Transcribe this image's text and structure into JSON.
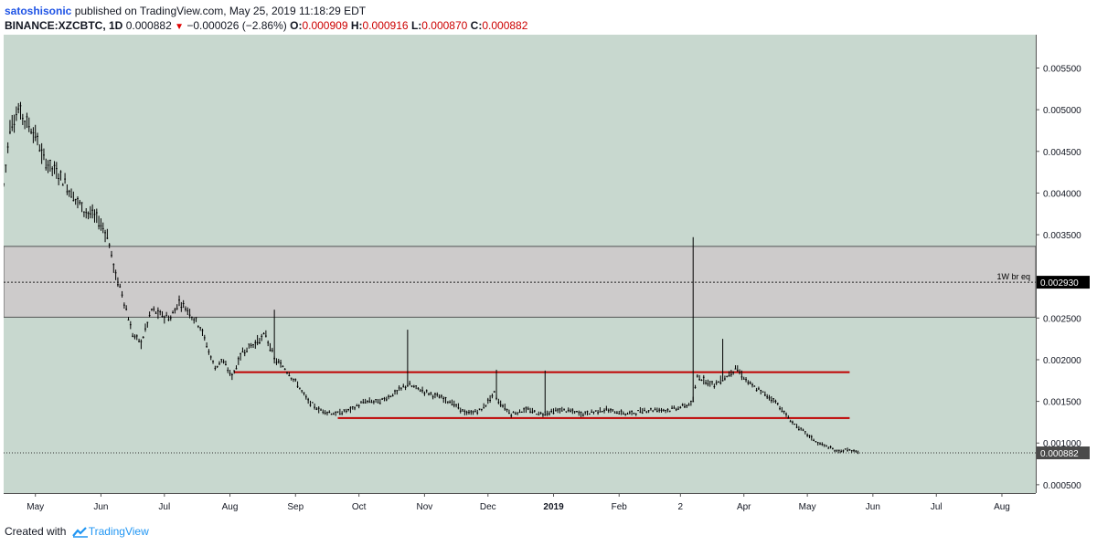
{
  "header": {
    "author": "satoshisonic",
    "published_text": "published on TradingView.com, May 25, 2019 11:18:29 EDT",
    "symbol": "BINANCE:XZCBTC, 1D",
    "last_price": "0.000882",
    "change": "−0.000026 (−2.86%)",
    "o_label": "O:",
    "o_value": "0.000909",
    "h_label": "H:",
    "h_value": "0.000916",
    "l_label": "L:",
    "l_value": "0.000870",
    "c_label": "C:",
    "c_value": "0.000882"
  },
  "footer": {
    "created_with": "Created with",
    "brand": "TradingView"
  },
  "colors": {
    "plot_bg": "#c8d8cf",
    "zone_fill": "#cdcbcb",
    "sr_line": "#c00000",
    "price": "#000000",
    "last_price_tag": "#4a4a4a",
    "level_tag": "#000000",
    "accent": "#2196f3"
  },
  "chart_data": {
    "type": "candlestick",
    "symbol": "BINANCE:XZCBTC",
    "interval": "1D",
    "x_ticks": [
      "May",
      "Jun",
      "Jul",
      "Aug",
      "Sep",
      "Oct",
      "Nov",
      "Dec",
      "2019",
      "Feb",
      "2",
      "Apr",
      "May",
      "Jun",
      "Jul",
      "Aug"
    ],
    "x_ticks_dates": [
      "2018-05-01",
      "2018-06-01",
      "2018-07-01",
      "2018-08-01",
      "2018-09-01",
      "2018-10-01",
      "2018-11-01",
      "2018-12-01",
      "2019-01-01",
      "2019-02-01",
      "2019-03-02",
      "2019-04-01",
      "2019-05-01",
      "2019-06-01",
      "2019-07-01",
      "2019-08-01"
    ],
    "x_range": [
      "2018-04-16",
      "2019-08-17"
    ],
    "y_ticks": [
      "0.005500",
      "0.005000",
      "0.004500",
      "0.004000",
      "0.003500",
      "0.002930",
      "0.002500",
      "0.002000",
      "0.001500",
      "0.001000",
      "0.000882",
      "0.000500"
    ],
    "ylim": [
      0.0004,
      0.0059
    ],
    "grid": false,
    "series": [
      {
        "name": "XZCBTC",
        "x": [
          "2018-04-16",
          "2018-04-19",
          "2018-04-23",
          "2018-04-27",
          "2018-05-01",
          "2018-05-05",
          "2018-05-09",
          "2018-05-13",
          "2018-05-18",
          "2018-05-24",
          "2018-05-30",
          "2018-06-04",
          "2018-06-08",
          "2018-06-11",
          "2018-06-13",
          "2018-06-16",
          "2018-06-20",
          "2018-06-25",
          "2018-06-28",
          "2018-07-04",
          "2018-07-08",
          "2018-07-12",
          "2018-07-18",
          "2018-07-22",
          "2018-07-25",
          "2018-07-28",
          "2018-08-02",
          "2018-08-07",
          "2018-08-13",
          "2018-08-18",
          "2018-08-22",
          "2018-08-27",
          "2018-09-02",
          "2018-09-07",
          "2018-09-12",
          "2018-09-20",
          "2018-09-27",
          "2018-10-04",
          "2018-10-11",
          "2018-10-18",
          "2018-10-24",
          "2018-11-03",
          "2018-11-13",
          "2018-11-21",
          "2018-11-28",
          "2018-12-04",
          "2018-12-06",
          "2018-12-12",
          "2018-12-19",
          "2018-12-26",
          "2019-01-05",
          "2019-01-15",
          "2019-01-25",
          "2019-02-05",
          "2019-02-15",
          "2019-02-25",
          "2019-03-05",
          "2019-03-08",
          "2019-03-10",
          "2019-03-18",
          "2019-03-24",
          "2019-03-28",
          "2019-04-04",
          "2019-04-10",
          "2019-04-16",
          "2019-04-22",
          "2019-04-26",
          "2019-05-01",
          "2019-05-06",
          "2019-05-11",
          "2019-05-15",
          "2019-05-20",
          "2019-05-25"
        ],
        "close": [
          0.0041,
          0.0048,
          0.005,
          0.00485,
          0.0047,
          0.0044,
          0.0043,
          0.0042,
          0.004,
          0.0038,
          0.0037,
          0.0035,
          0.003,
          0.0028,
          0.0026,
          0.0023,
          0.0022,
          0.0026,
          0.00255,
          0.0025,
          0.0027,
          0.0026,
          0.0024,
          0.0021,
          0.0019,
          0.002,
          0.0018,
          0.0021,
          0.0022,
          0.0023,
          0.002,
          0.0019,
          0.0017,
          0.0015,
          0.0014,
          0.00135,
          0.0014,
          0.0015,
          0.0015,
          0.0016,
          0.0017,
          0.0016,
          0.0015,
          0.00135,
          0.0014,
          0.0016,
          0.0015,
          0.00135,
          0.0014,
          0.00135,
          0.0014,
          0.00135,
          0.0014,
          0.00135,
          0.0014,
          0.0014,
          0.00145,
          0.0015,
          0.0018,
          0.0017,
          0.0018,
          0.0019,
          0.0017,
          0.0016,
          0.0015,
          0.0013,
          0.0012,
          0.0011,
          0.001,
          0.00095,
          0.0009,
          0.00092,
          0.000882
        ]
      }
    ],
    "spikes": [
      {
        "date": "2018-08-22",
        "high": 0.0026
      },
      {
        "date": "2018-10-24",
        "high": 0.00236
      },
      {
        "date": "2018-12-05",
        "high": 0.00188
      },
      {
        "date": "2018-12-28",
        "high": 0.00187
      },
      {
        "date": "2019-03-08",
        "high": 0.00347
      },
      {
        "date": "2019-03-22",
        "high": 0.00225
      }
    ],
    "zone": {
      "top": 0.00336,
      "bottom": 0.00251
    },
    "levels": [
      {
        "name": "1W br eq",
        "price": 0.00293,
        "label": "0.002930"
      }
    ],
    "support_resistance": [
      {
        "price": 0.00185,
        "from": "2018-08-03",
        "to": "2019-05-21"
      },
      {
        "price": 0.0013,
        "from": "2018-09-21",
        "to": "2019-05-21"
      }
    ],
    "last_price": 0.000882,
    "last_price_label": "0.000882"
  }
}
